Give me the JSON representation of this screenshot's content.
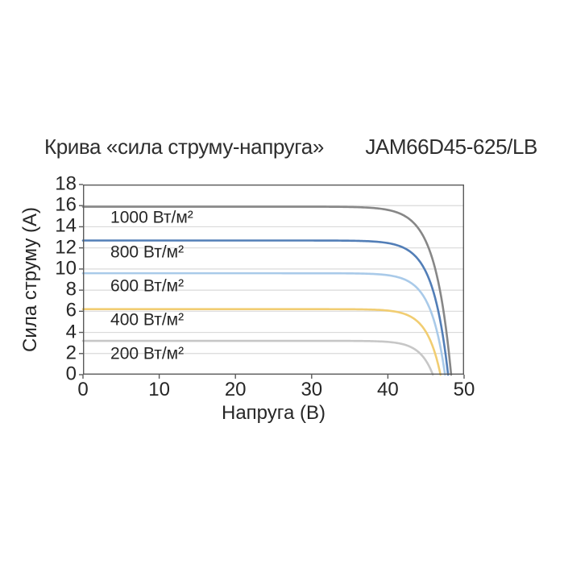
{
  "chart_data": {
    "type": "line",
    "title": "Крива «сила струму-напруга»",
    "model": "JAM66D45-625/LB",
    "xlabel": "Напруга (В)",
    "ylabel": "Сила струму (А)",
    "xlim": [
      0,
      50
    ],
    "ylim": [
      0,
      18
    ],
    "x_ticks": [
      0,
      10,
      20,
      30,
      40,
      50
    ],
    "y_ticks": [
      0,
      2,
      4,
      6,
      8,
      10,
      12,
      14,
      16,
      18
    ],
    "grid": "horizontal-only",
    "legend": "inline-labels-below-each-curve",
    "curve_model": "I = Isc*(1 - exp((V - Voc)/a))",
    "label_x": 3.6,
    "series": [
      {
        "label": "1000 Вт/м²",
        "isc": 15.9,
        "voc": 48.3,
        "a": 2.1,
        "color": "#878787",
        "label_y": 14.85
      },
      {
        "label": "800 Вт/м²",
        "isc": 12.7,
        "voc": 47.9,
        "a": 2.0,
        "color": "#527eb7",
        "label_y": 11.6
      },
      {
        "label": "600 Вт/м²",
        "isc": 9.6,
        "voc": 47.5,
        "a": 1.9,
        "color": "#a9cae9",
        "label_y": 8.4
      },
      {
        "label": "400 Вт/м²",
        "isc": 6.2,
        "voc": 46.9,
        "a": 1.8,
        "color": "#f1cd72",
        "label_y": 5.15
      },
      {
        "label": "200 Вт/м²",
        "isc": 3.2,
        "voc": 45.9,
        "a": 1.7,
        "color": "#c7c7c7",
        "label_y": 1.95
      }
    ],
    "colors": {
      "grid_line": "#dadada",
      "frame": "#5a5a5a",
      "tick": "#5a5a5a",
      "text": "#262626",
      "background": "#ffffff"
    }
  }
}
